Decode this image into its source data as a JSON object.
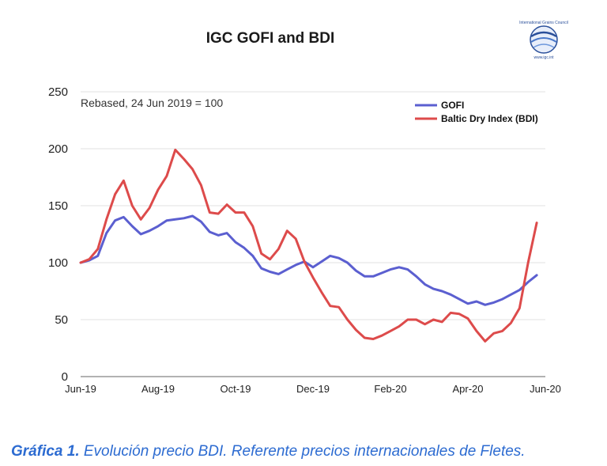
{
  "chart_data": {
    "type": "line",
    "title": "IGC GOFI and BDI",
    "annotation": "Rebased, 24 Jun 2019 = 100",
    "ylim": [
      0,
      250
    ],
    "yticks": [
      0,
      50,
      100,
      150,
      200,
      250
    ],
    "xlim": [
      0,
      52
    ],
    "xticks": [
      {
        "x": 0,
        "label": "Jun-19"
      },
      {
        "x": 9,
        "label": "Aug-19"
      },
      {
        "x": 18,
        "label": "Oct-19"
      },
      {
        "x": 27,
        "label": "Dec-19"
      },
      {
        "x": 36,
        "label": "Feb-20"
      },
      {
        "x": 45,
        "label": "Apr-20"
      },
      {
        "x": 54,
        "label": "Jun-20"
      }
    ],
    "grid": true,
    "legend_position": "top-right",
    "series": [
      {
        "name": "GOFI",
        "color": "#5b5fd0",
        "points": [
          [
            0,
            100
          ],
          [
            1,
            102
          ],
          [
            2,
            106
          ],
          [
            3,
            126
          ],
          [
            4,
            137
          ],
          [
            5,
            140
          ],
          [
            6,
            132
          ],
          [
            7,
            125
          ],
          [
            8,
            128
          ],
          [
            9,
            132
          ],
          [
            10,
            137
          ],
          [
            11,
            138
          ],
          [
            12,
            139
          ],
          [
            13,
            141
          ],
          [
            14,
            136
          ],
          [
            15,
            127
          ],
          [
            16,
            124
          ],
          [
            17,
            126
          ],
          [
            18,
            118
          ],
          [
            19,
            113
          ],
          [
            20,
            106
          ],
          [
            21,
            95
          ],
          [
            22,
            92
          ],
          [
            23,
            90
          ],
          [
            24,
            94
          ],
          [
            25,
            98
          ],
          [
            26,
            101
          ],
          [
            27,
            96
          ],
          [
            28,
            101
          ],
          [
            29,
            106
          ],
          [
            30,
            104
          ],
          [
            31,
            100
          ],
          [
            32,
            93
          ],
          [
            33,
            88
          ],
          [
            34,
            88
          ],
          [
            35,
            91
          ],
          [
            36,
            94
          ],
          [
            37,
            96
          ],
          [
            38,
            94
          ],
          [
            39,
            88
          ],
          [
            40,
            81
          ],
          [
            41,
            77
          ],
          [
            42,
            75
          ],
          [
            43,
            72
          ],
          [
            44,
            68
          ],
          [
            45,
            64
          ],
          [
            46,
            66
          ],
          [
            47,
            63
          ],
          [
            48,
            65
          ],
          [
            49,
            68
          ],
          [
            50,
            72
          ],
          [
            51,
            76
          ],
          [
            52,
            83
          ],
          [
            53,
            89
          ]
        ]
      },
      {
        "name": "Baltic Dry Index (BDI)",
        "color": "#dd4b4b",
        "points": [
          [
            0,
            100
          ],
          [
            1,
            103
          ],
          [
            2,
            112
          ],
          [
            3,
            138
          ],
          [
            4,
            160
          ],
          [
            5,
            172
          ],
          [
            6,
            150
          ],
          [
            7,
            138
          ],
          [
            8,
            148
          ],
          [
            9,
            164
          ],
          [
            10,
            176
          ],
          [
            11,
            199
          ],
          [
            12,
            191
          ],
          [
            13,
            182
          ],
          [
            14,
            168
          ],
          [
            15,
            144
          ],
          [
            16,
            143
          ],
          [
            17,
            151
          ],
          [
            18,
            144
          ],
          [
            19,
            144
          ],
          [
            20,
            132
          ],
          [
            21,
            108
          ],
          [
            22,
            103
          ],
          [
            23,
            112
          ],
          [
            24,
            128
          ],
          [
            25,
            121
          ],
          [
            26,
            101
          ],
          [
            27,
            87
          ],
          [
            28,
            74
          ],
          [
            29,
            62
          ],
          [
            30,
            61
          ],
          [
            31,
            50
          ],
          [
            32,
            41
          ],
          [
            33,
            34
          ],
          [
            34,
            33
          ],
          [
            35,
            36
          ],
          [
            36,
            40
          ],
          [
            37,
            44
          ],
          [
            38,
            50
          ],
          [
            39,
            50
          ],
          [
            40,
            46
          ],
          [
            41,
            50
          ],
          [
            42,
            48
          ],
          [
            43,
            56
          ],
          [
            44,
            55
          ],
          [
            45,
            51
          ],
          [
            46,
            40
          ],
          [
            47,
            31
          ],
          [
            48,
            38
          ],
          [
            49,
            40
          ],
          [
            50,
            47
          ],
          [
            51,
            60
          ],
          [
            52,
            100
          ],
          [
            53,
            135
          ]
        ]
      }
    ]
  },
  "logo": {
    "name": "igc-logo",
    "org_text": "International Grains Council",
    "url_text": "www.igc.int"
  },
  "caption": {
    "label": "Gráfica 1.",
    "text": " Evolución precio BDI. Referente precios internacionales de Fletes."
  }
}
